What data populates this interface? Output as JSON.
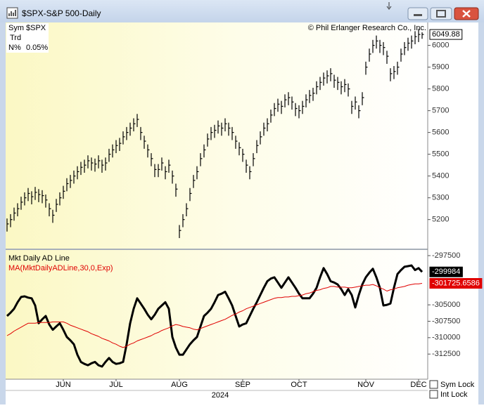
{
  "window": {
    "title": "$SPX-S&P 500-Daily"
  },
  "info": {
    "sym_label": "Sym",
    "sym": "$SPX",
    "trd": "Trd",
    "n_label": "N%",
    "n": "0.05%"
  },
  "copyright": "© Phil Erlanger Research Co., Inc.",
  "year": "2024",
  "controls": {
    "sym_lock": "Sym Lock",
    "int_lock": "Int Lock"
  },
  "chart_data": [
    {
      "type": "ohlc",
      "color": "#000000",
      "categories": [
        null,
        null,
        null,
        null,
        null,
        null,
        null,
        null,
        null,
        null,
        null,
        null,
        null,
        null,
        null,
        null,
        "JUN",
        null,
        null,
        null,
        null,
        null,
        null,
        null,
        null,
        null,
        null,
        null,
        null,
        null,
        null,
        "JUL",
        null,
        null,
        null,
        null,
        null,
        null,
        null,
        null,
        null,
        null,
        null,
        null,
        null,
        null,
        null,
        null,
        null,
        "AUG",
        null,
        null,
        null,
        null,
        null,
        null,
        null,
        null,
        null,
        null,
        null,
        null,
        null,
        null,
        null,
        null,
        null,
        "SEP",
        null,
        null,
        null,
        null,
        null,
        null,
        null,
        null,
        null,
        null,
        null,
        null,
        null,
        null,
        null,
        "OCT",
        null,
        null,
        null,
        null,
        null,
        null,
        null,
        null,
        null,
        null,
        null,
        null,
        null,
        null,
        null,
        null,
        null,
        null,
        "NOV",
        null,
        null,
        null,
        null,
        null,
        null,
        null,
        null,
        null,
        null,
        null,
        null,
        null,
        null,
        "DEC",
        null
      ],
      "high": [
        5205,
        5225,
        5255,
        5275,
        5305,
        5325,
        5345,
        5330,
        5350,
        5340,
        5335,
        5315,
        5275,
        5245,
        5295,
        5325,
        5355,
        5390,
        5405,
        5425,
        5445,
        5465,
        5475,
        5495,
        5485,
        5480,
        5495,
        5475,
        5485,
        5525,
        5545,
        5565,
        5575,
        5605,
        5625,
        5645,
        5665,
        5685,
        5625,
        5585,
        5545,
        5505,
        5455,
        5455,
        5485,
        5445,
        5475,
        5425,
        5365,
        5175,
        5225,
        5275,
        5345,
        5405,
        5445,
        5505,
        5545,
        5595,
        5625,
        5635,
        5655,
        5645,
        5665,
        5645,
        5625,
        5585,
        5555,
        5525,
        5475,
        5445,
        5505,
        5565,
        5605,
        5645,
        5665,
        5705,
        5735,
        5755,
        5745,
        5775,
        5785,
        5765,
        5735,
        5725,
        5745,
        5775,
        5795,
        5805,
        5835,
        5855,
        5875,
        5885,
        5895,
        5865,
        5855,
        5835,
        5845,
        5825,
        5745,
        5765,
        5725,
        5785,
        5925,
        5985,
        6025,
        6045,
        6025,
        6015,
        5975,
        5895,
        5905,
        5925,
        5985,
        6015,
        6035,
        6045,
        6065,
        6075,
        6060
      ],
      "low": [
        5145,
        5165,
        5195,
        5215,
        5245,
        5265,
        5285,
        5270,
        5290,
        5280,
        5275,
        5255,
        5215,
        5185,
        5235,
        5265,
        5295,
        5330,
        5345,
        5365,
        5385,
        5405,
        5415,
        5435,
        5425,
        5420,
        5435,
        5415,
        5425,
        5465,
        5485,
        5505,
        5515,
        5545,
        5565,
        5585,
        5605,
        5625,
        5565,
        5525,
        5485,
        5445,
        5395,
        5395,
        5425,
        5385,
        5415,
        5365,
        5305,
        5115,
        5165,
        5215,
        5285,
        5345,
        5385,
        5445,
        5485,
        5535,
        5565,
        5575,
        5595,
        5585,
        5605,
        5585,
        5565,
        5525,
        5495,
        5465,
        5415,
        5385,
        5445,
        5505,
        5545,
        5585,
        5605,
        5645,
        5675,
        5695,
        5685,
        5715,
        5725,
        5705,
        5675,
        5665,
        5685,
        5715,
        5735,
        5745,
        5775,
        5795,
        5815,
        5825,
        5835,
        5805,
        5795,
        5775,
        5785,
        5765,
        5685,
        5705,
        5665,
        5725,
        5865,
        5925,
        5965,
        5985,
        5965,
        5955,
        5915,
        5835,
        5845,
        5865,
        5925,
        5955,
        5975,
        5985,
        6005,
        6015,
        6030
      ],
      "close": [
        5180,
        5200,
        5230,
        5250,
        5280,
        5300,
        5320,
        5305,
        5325,
        5315,
        5310,
        5290,
        5250,
        5220,
        5270,
        5300,
        5330,
        5365,
        5380,
        5400,
        5420,
        5440,
        5450,
        5470,
        5460,
        5455,
        5470,
        5450,
        5460,
        5500,
        5520,
        5540,
        5550,
        5580,
        5600,
        5620,
        5640,
        5660,
        5600,
        5560,
        5520,
        5480,
        5430,
        5430,
        5460,
        5420,
        5450,
        5400,
        5340,
        5150,
        5200,
        5250,
        5320,
        5380,
        5420,
        5480,
        5520,
        5570,
        5600,
        5610,
        5630,
        5620,
        5640,
        5620,
        5600,
        5560,
        5530,
        5500,
        5450,
        5420,
        5480,
        5540,
        5580,
        5620,
        5640,
        5680,
        5710,
        5730,
        5720,
        5750,
        5760,
        5740,
        5710,
        5700,
        5720,
        5750,
        5770,
        5780,
        5810,
        5830,
        5850,
        5860,
        5870,
        5840,
        5830,
        5810,
        5820,
        5800,
        5720,
        5740,
        5700,
        5760,
        5900,
        5960,
        6000,
        6020,
        6000,
        5990,
        5950,
        5870,
        5880,
        5900,
        5960,
        5990,
        6010,
        6020,
        6040,
        6050,
        6049.88
      ],
      "ylim": [
        5070,
        6105
      ],
      "yticks": [
        5200,
        5300,
        5400,
        5500,
        5600,
        5700,
        5800,
        5900,
        6000
      ]
    },
    {
      "type": "line",
      "series": [
        {
          "name": "Mkt Daily AD Line",
          "color": "#000000",
          "values": [
            -306700,
            -306200,
            -305600,
            -304600,
            -303800,
            -303700,
            -303900,
            -304000,
            -305100,
            -307800,
            -307200,
            -306700,
            -308000,
            -308800,
            -308300,
            -307800,
            -308800,
            -309900,
            -310400,
            -311000,
            -312600,
            -313700,
            -314000,
            -314200,
            -313900,
            -313700,
            -314200,
            -314400,
            -313700,
            -313100,
            -313700,
            -314000,
            -313900,
            -313700,
            -311000,
            -307800,
            -305600,
            -304000,
            -304800,
            -305600,
            -306500,
            -307200,
            -306500,
            -305600,
            -305100,
            -304600,
            -305600,
            -309900,
            -311500,
            -312600,
            -312600,
            -311800,
            -311000,
            -310400,
            -309900,
            -308300,
            -306700,
            -306200,
            -305600,
            -304600,
            -303500,
            -303300,
            -303000,
            -304000,
            -305100,
            -306700,
            -308300,
            -308000,
            -307800,
            -306700,
            -305600,
            -304600,
            -303500,
            -302400,
            -301400,
            -301000,
            -300800,
            -301600,
            -302400,
            -301600,
            -300800,
            -301600,
            -302400,
            -303300,
            -304000,
            -304000,
            -304000,
            -303300,
            -302400,
            -300800,
            -299400,
            -300300,
            -301400,
            -301600,
            -301900,
            -302600,
            -303500,
            -302600,
            -303500,
            -305400,
            -303500,
            -301900,
            -300800,
            -300100,
            -299500,
            -300800,
            -302400,
            -305100,
            -305000,
            -304800,
            -302400,
            -300300,
            -299700,
            -299200,
            -299100,
            -299000,
            -299700,
            -299400,
            -299984
          ]
        },
        {
          "name": "MA(MktDailyADLine,30,0,Exp)",
          "color": "#e00000",
          "values": [
            -309700,
            -309400,
            -309000,
            -308700,
            -308400,
            -308100,
            -307800,
            -307800,
            -307800,
            -307700,
            -307700,
            -307700,
            -307700,
            -307600,
            -307600,
            -307600,
            -307600,
            -307800,
            -308100,
            -308300,
            -308500,
            -308700,
            -308900,
            -309100,
            -309400,
            -309600,
            -309800,
            -310100,
            -310300,
            -310500,
            -310800,
            -311000,
            -311300,
            -311500,
            -311300,
            -311000,
            -310800,
            -310500,
            -310300,
            -310100,
            -309900,
            -309700,
            -309400,
            -309200,
            -308900,
            -308700,
            -308500,
            -308200,
            -308000,
            -308100,
            -308300,
            -308400,
            -308500,
            -308700,
            -308800,
            -308600,
            -308400,
            -308200,
            -308000,
            -307800,
            -307600,
            -307400,
            -307200,
            -306900,
            -306600,
            -306400,
            -306100,
            -305900,
            -305600,
            -305400,
            -305200,
            -305000,
            -304800,
            -304600,
            -304400,
            -304200,
            -304000,
            -303900,
            -303900,
            -303800,
            -303800,
            -303700,
            -303700,
            -303600,
            -303500,
            -303300,
            -303200,
            -303000,
            -302800,
            -302700,
            -302500,
            -302400,
            -302200,
            -302200,
            -302300,
            -302300,
            -302300,
            -302400,
            -302400,
            -302300,
            -302200,
            -302100,
            -302000,
            -302000,
            -301900,
            -302100,
            -302400,
            -302600,
            -302900,
            -302700,
            -302600,
            -302400,
            -302300,
            -302200,
            -302000,
            -301900,
            -301800,
            -301800,
            -301725.6586
          ]
        }
      ],
      "ylim": [
        -316330,
        -296750
      ],
      "yticks": [
        -297500,
        -305000,
        -307500,
        -310000,
        -312500
      ]
    }
  ]
}
